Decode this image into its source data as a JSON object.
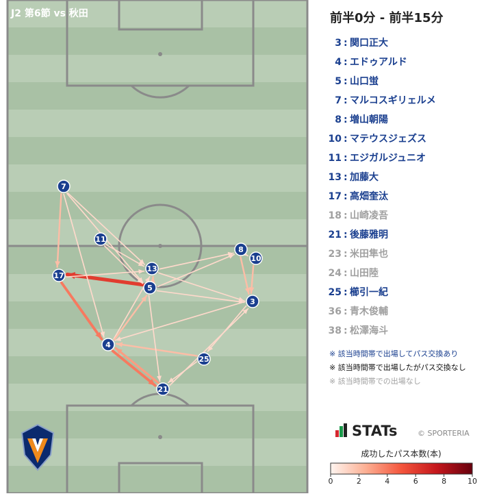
{
  "header": {
    "match": "J2 第6節 vs 秋田",
    "period": "前半0分 - 前半15分"
  },
  "players": [
    {
      "number": "3",
      "name": "関口正大",
      "color": "#1a3f8f"
    },
    {
      "number": "4",
      "name": "エドゥアルド",
      "color": "#1a3f8f"
    },
    {
      "number": "5",
      "name": "山口蛍",
      "color": "#1a3f8f"
    },
    {
      "number": "7",
      "name": "マルコスギリェルメ",
      "color": "#1a3f8f"
    },
    {
      "number": "8",
      "name": "増山朝陽",
      "color": "#1a3f8f"
    },
    {
      "number": "10",
      "name": "マテウスジェズス",
      "color": "#1a3f8f"
    },
    {
      "number": "11",
      "name": "エジガルジュニオ",
      "color": "#1a3f8f"
    },
    {
      "number": "13",
      "name": "加藤大",
      "color": "#1a3f8f"
    },
    {
      "number": "17",
      "name": "高畑奎汰",
      "color": "#1a3f8f"
    },
    {
      "number": "18",
      "name": "山崎凌吾",
      "color": "#a0a0a0"
    },
    {
      "number": "21",
      "name": "後藤雅明",
      "color": "#1a3f8f"
    },
    {
      "number": "23",
      "name": "米田隼也",
      "color": "#a0a0a0"
    },
    {
      "number": "24",
      "name": "山田陸",
      "color": "#a0a0a0"
    },
    {
      "number": "25",
      "name": "櫛引一紀",
      "color": "#1a3f8f"
    },
    {
      "number": "36",
      "name": "青木俊輔",
      "color": "#a0a0a0"
    },
    {
      "number": "38",
      "name": "松澤海斗",
      "color": "#a0a0a0"
    }
  ],
  "notes": [
    {
      "text": "※ 該当時間帯で出場してパス交換あり",
      "color": "#1a3f8f"
    },
    {
      "text": "※ 該当時間帯で出場したがパス交換なし",
      "color": "#111111"
    },
    {
      "text": "※ 該当時間帯での出場なし",
      "color": "#a0a0a0"
    }
  ],
  "nodes": [
    {
      "label": "7"
    },
    {
      "label": "11"
    },
    {
      "label": "13"
    },
    {
      "label": "17"
    },
    {
      "label": "5"
    },
    {
      "label": "8"
    },
    {
      "label": "10"
    },
    {
      "label": "3"
    },
    {
      "label": "4"
    },
    {
      "label": "25"
    },
    {
      "label": "21"
    }
  ],
  "edges": [
    {
      "from": "5",
      "to": "17",
      "count": 6
    },
    {
      "from": "17",
      "to": "4",
      "count": 4
    },
    {
      "from": "4",
      "to": "21",
      "count": 4
    },
    {
      "from": "21",
      "to": "4",
      "count": 3
    },
    {
      "from": "5",
      "to": "13",
      "count": 2
    },
    {
      "from": "7",
      "to": "17",
      "count": 2
    },
    {
      "from": "7",
      "to": "13",
      "count": 1
    },
    {
      "from": "7",
      "to": "5",
      "count": 1
    },
    {
      "from": "11",
      "to": "13",
      "count": 1
    },
    {
      "from": "11",
      "to": "5",
      "count": 1
    },
    {
      "from": "13",
      "to": "8",
      "count": 1
    },
    {
      "from": "5",
      "to": "8",
      "count": 1
    },
    {
      "from": "5",
      "to": "3",
      "count": 1
    },
    {
      "from": "8",
      "to": "3",
      "count": 2
    },
    {
      "from": "10",
      "to": "3",
      "count": 2
    },
    {
      "from": "8",
      "to": "10",
      "count": 1
    },
    {
      "from": "3",
      "to": "25",
      "count": 1
    },
    {
      "from": "3",
      "to": "4",
      "count": 1
    },
    {
      "from": "25",
      "to": "4",
      "count": 2
    },
    {
      "from": "25",
      "to": "21",
      "count": 1
    },
    {
      "from": "21",
      "to": "3",
      "count": 1
    },
    {
      "from": "4",
      "to": "13",
      "count": 1
    },
    {
      "from": "4",
      "to": "5",
      "count": 2
    },
    {
      "from": "17",
      "to": "13",
      "count": 1
    },
    {
      "from": "5",
      "to": "21",
      "count": 1
    },
    {
      "from": "7",
      "to": "4",
      "count": 1
    },
    {
      "from": "13",
      "to": "3",
      "count": 1
    }
  ],
  "colorbar": {
    "label": "成功したパス本数(本)",
    "min": 0,
    "max": 10,
    "ticks": [
      0,
      2,
      4,
      6,
      8,
      10
    ],
    "colors": [
      "#fff5f0",
      "#fcaf93",
      "#f4553c",
      "#c4161c",
      "#67000d"
    ]
  },
  "brand": {
    "logo": "STATs",
    "credit": "© SPORTERIA"
  }
}
